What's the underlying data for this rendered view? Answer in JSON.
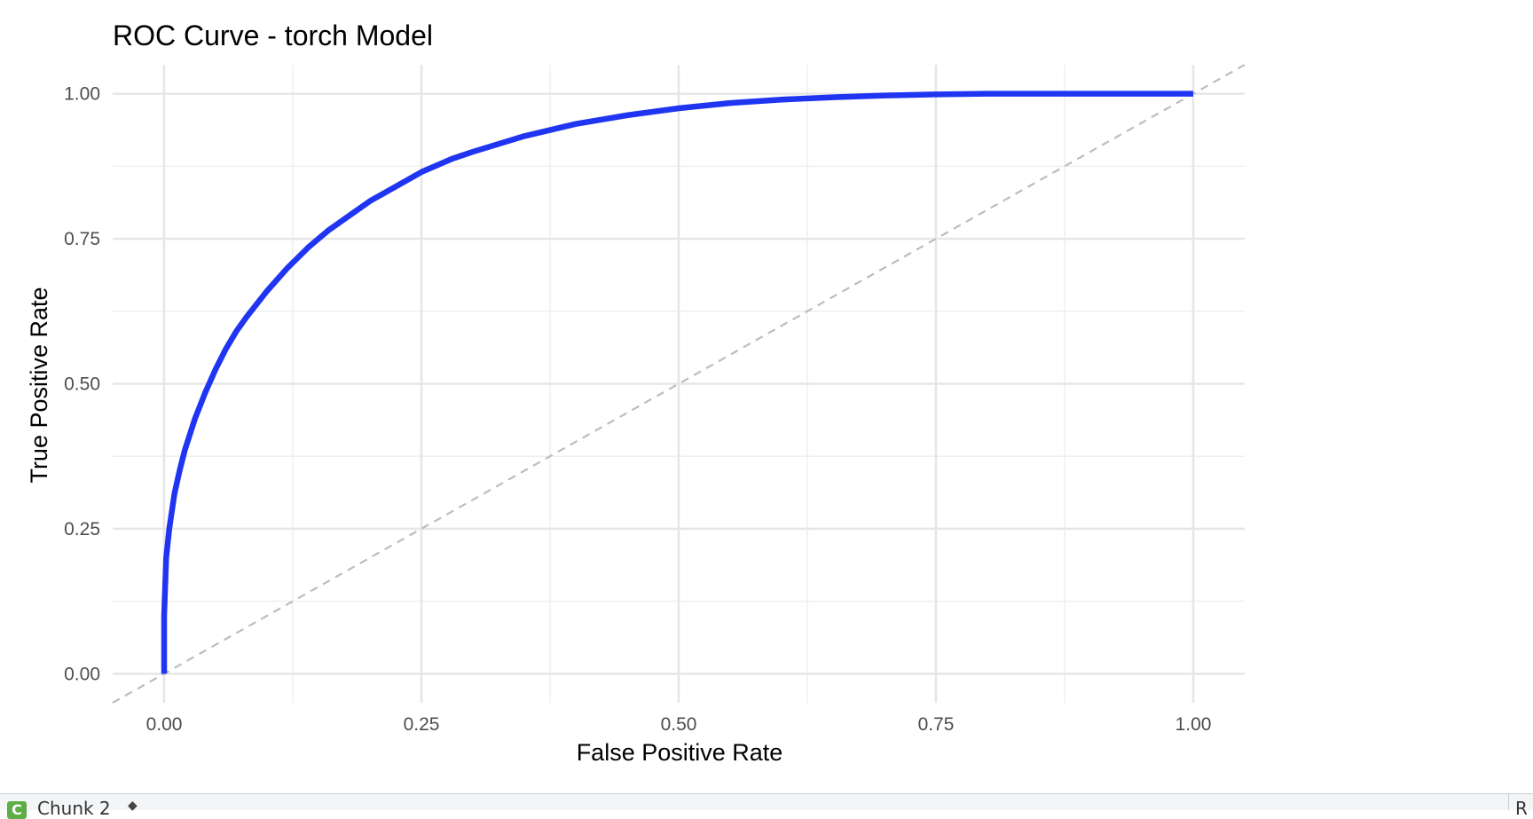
{
  "chart_data": {
    "type": "line",
    "title": "ROC Curve - torch Model",
    "xlabel": "False Positive Rate",
    "ylabel": "True Positive Rate",
    "xlim": [
      -0.05,
      1.05
    ],
    "ylim": [
      -0.05,
      1.05
    ],
    "x_ticks": [
      0.0,
      0.25,
      0.5,
      0.75,
      1.0
    ],
    "x_tick_labels": [
      "0.00",
      "0.25",
      "0.50",
      "0.75",
      "1.00"
    ],
    "y_ticks": [
      0.0,
      0.25,
      0.5,
      0.75,
      1.0
    ],
    "y_tick_labels": [
      "0.00",
      "0.25",
      "0.50",
      "0.75",
      "1.00"
    ],
    "grid": true,
    "legend": "none",
    "series": [
      {
        "color": "#1f35f2",
        "style": "solid",
        "x": [
          0.0,
          0.0,
          0.002,
          0.005,
          0.01,
          0.015,
          0.02,
          0.03,
          0.04,
          0.05,
          0.06,
          0.07,
          0.08,
          0.1,
          0.12,
          0.14,
          0.16,
          0.18,
          0.2,
          0.22,
          0.25,
          0.28,
          0.3,
          0.35,
          0.4,
          0.45,
          0.5,
          0.55,
          0.6,
          0.65,
          0.7,
          0.75,
          0.8,
          0.85,
          0.9,
          0.95,
          1.0
        ],
        "y": [
          0.0,
          0.1,
          0.2,
          0.25,
          0.31,
          0.35,
          0.385,
          0.44,
          0.485,
          0.525,
          0.56,
          0.59,
          0.615,
          0.66,
          0.7,
          0.735,
          0.765,
          0.79,
          0.815,
          0.835,
          0.865,
          0.888,
          0.9,
          0.927,
          0.948,
          0.963,
          0.975,
          0.984,
          0.99,
          0.994,
          0.997,
          0.999,
          1.0,
          1.0,
          1.0,
          1.0,
          1.0
        ]
      },
      {
        "color": "#bdbdbd",
        "style": "dashed",
        "x": [
          -0.05,
          1.05
        ],
        "y": [
          -0.05,
          1.05
        ]
      }
    ]
  },
  "editor_bar": {
    "chunk_icon": "C",
    "chunk_label": "Chunk 2",
    "chunk_caret": "◆",
    "right_glyph": "R"
  }
}
